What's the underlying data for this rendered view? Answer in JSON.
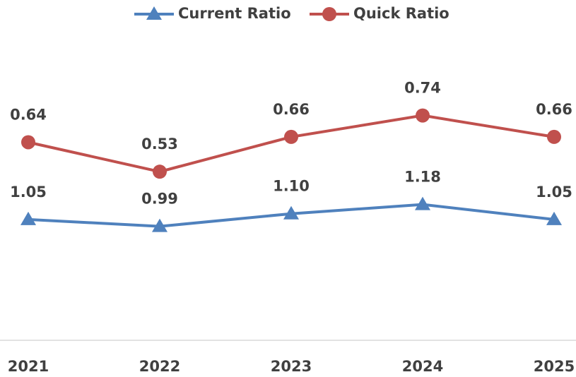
{
  "chart_data": {
    "type": "line",
    "categories": [
      "2021",
      "2022",
      "2023",
      "2024",
      "2025"
    ],
    "series": [
      {
        "name": "Current Ratio",
        "color": "#4f81bd",
        "marker": "triangle",
        "values": [
          1.05,
          0.99,
          1.1,
          1.18,
          1.05
        ],
        "value_labels": [
          "1.05",
          "0.99",
          "1.10",
          "1.18",
          "1.05"
        ]
      },
      {
        "name": "Quick Ratio",
        "color": "#c0504d",
        "marker": "circle",
        "axis": "y2",
        "values": [
          0.64,
          0.53,
          0.66,
          0.74,
          0.66
        ]
      }
    ],
    "ylim": [
      0,
      2
    ],
    "y2lim": [
      -0.1,
      0.76
    ],
    "legend": "top",
    "grid": false
  }
}
